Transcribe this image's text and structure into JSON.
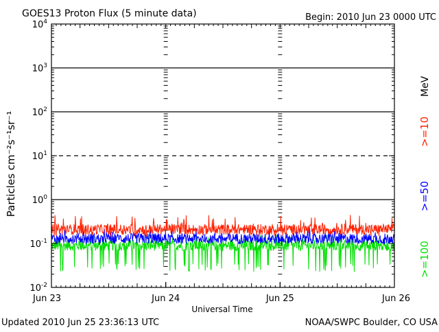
{
  "chart_data": {
    "type": "line",
    "title": "GOES13 Proton Flux (5 minute data)",
    "begin_label": "Begin: 2010 Jun 23 0000 UTC",
    "ylabel": "Particles cm⁻²s⁻¹sr⁻¹",
    "xlabel": "Universal Time",
    "updated_label": "Updated 2010 Jun 25 23:36:13 UTC",
    "credit_label": "NOAA/SWPC Boulder, CO USA",
    "unit_label": "MeV",
    "y_scale": "log",
    "ylim": [
      0.01,
      10000
    ],
    "y_ticks": [
      {
        "base": "10",
        "exp": "4",
        "value": 10000
      },
      {
        "base": "10",
        "exp": "3",
        "value": 1000
      },
      {
        "base": "10",
        "exp": "2",
        "value": 100
      },
      {
        "base": "10",
        "exp": "1",
        "value": 10
      },
      {
        "base": "10",
        "exp": "0",
        "value": 1
      },
      {
        "base": "10",
        "exp": "-1",
        "value": 0.1
      },
      {
        "base": "10",
        "exp": "-2",
        "value": 0.01
      }
    ],
    "x_ticks": [
      {
        "label": "Jun 23",
        "value": "2010-06-23"
      },
      {
        "label": "Jun 24",
        "value": "2010-06-24"
      },
      {
        "label": "Jun 25",
        "value": "2010-06-25"
      },
      {
        "label": "Jun 26",
        "value": "2010-06-26"
      }
    ],
    "xlim": [
      "2010-06-23",
      "2010-06-26"
    ],
    "reference_lines": [
      {
        "value": 10,
        "style": "dashed"
      },
      {
        "value": 1,
        "style": "solid"
      }
    ],
    "series": [
      {
        "name": ">=10",
        "color": "#ff2000",
        "typical": 0.21,
        "range": [
          0.14,
          0.45
        ]
      },
      {
        "name": ">=50",
        "color": "#0000ff",
        "typical": 0.13,
        "range": [
          0.09,
          0.22
        ]
      },
      {
        "name": ">=100",
        "color": "#00e000",
        "typical": 0.09,
        "range": [
          0.022,
          0.16
        ]
      }
    ]
  }
}
